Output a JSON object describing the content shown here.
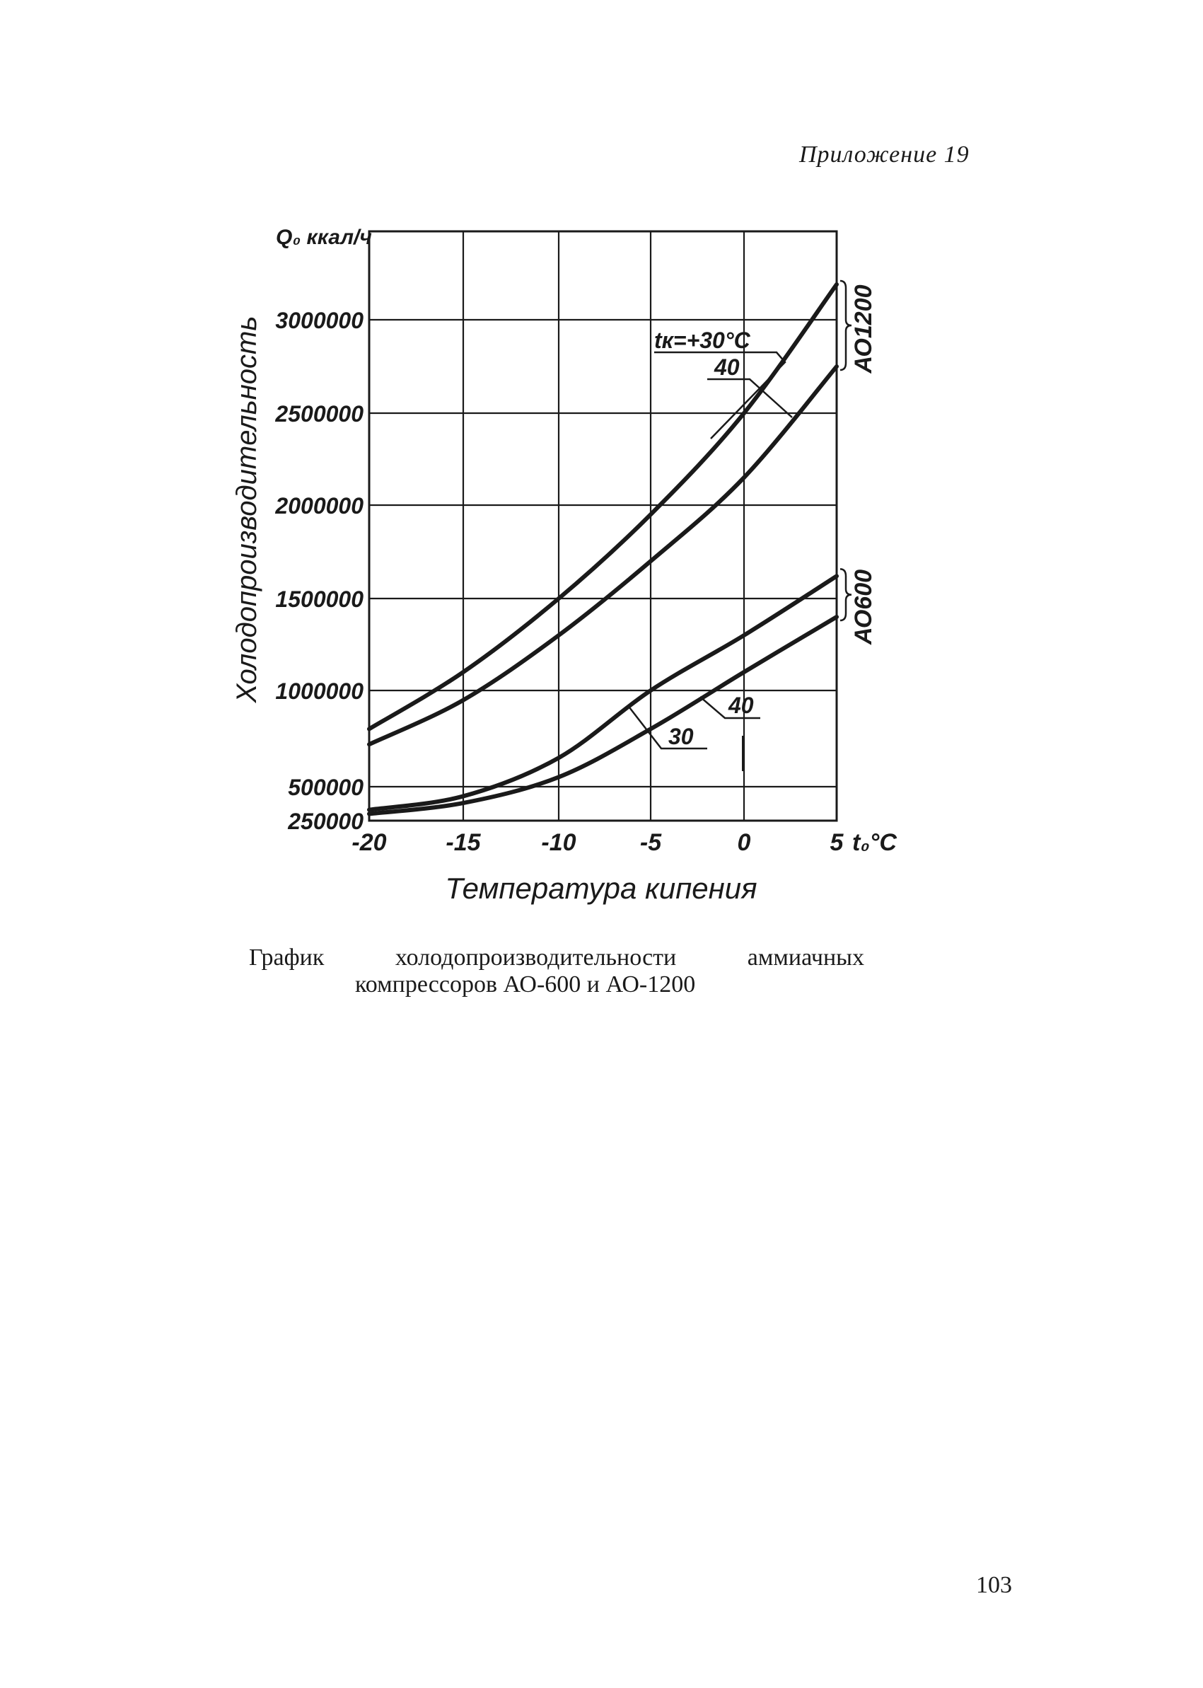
{
  "page": {
    "appendix": "Приложение 19",
    "caption_line1": [
      "График",
      "холодопроизводительности",
      "аммиачных"
    ],
    "caption_line2": "компрессоров АО-600 и АО-1200",
    "page_number": "103"
  },
  "chart_data": {
    "type": "line",
    "title": "",
    "xlabel": "Температура кипения",
    "x_unit": "t₀°C",
    "ylabel": "Холодопроизводительность",
    "y_unit": "Q₀ ккал/ч",
    "xlim": [
      -20,
      5
    ],
    "x_ticks": [
      -20,
      -15,
      -10,
      -5,
      0,
      5
    ],
    "x_tick_labels": [
      "-20",
      "-15",
      "-10",
      "-5",
      "0",
      "5"
    ],
    "ylim": [
      250000,
      3500000
    ],
    "y_ticks": [
      250000,
      500000,
      1000000,
      1500000,
      2000000,
      2500000,
      3000000
    ],
    "y_tick_labels": [
      "250000",
      "500000",
      "1000000",
      "1500000",
      "2000000",
      "2500000",
      "3000000"
    ],
    "grid": true,
    "groups": [
      {
        "label": "АО1200",
        "series": [
          "AO1200_30",
          "AO1200_40"
        ]
      },
      {
        "label": "АО600",
        "series": [
          "AO600_30",
          "AO600_40"
        ]
      }
    ],
    "series": [
      {
        "id": "AO1200_30",
        "label": "tк=+30°C",
        "x": [
          -20,
          -15,
          -10,
          -5,
          0,
          5
        ],
        "values": [
          800000,
          1100000,
          1500000,
          1950000,
          2500000,
          3200000
        ]
      },
      {
        "id": "AO1200_40",
        "label": "40",
        "x": [
          -20,
          -15,
          -10,
          -5,
          0,
          5
        ],
        "values": [
          720000,
          950000,
          1300000,
          1700000,
          2150000,
          2750000
        ]
      },
      {
        "id": "AO600_30",
        "label": "30",
        "x": [
          -20,
          -15,
          -10,
          -5,
          0,
          5
        ],
        "values": [
          330000,
          430000,
          650000,
          1000000,
          1300000,
          1620000
        ]
      },
      {
        "id": "AO600_40",
        "label": "40",
        "x": [
          -20,
          -15,
          -10,
          -5,
          0,
          5
        ],
        "values": [
          300000,
          380000,
          550000,
          800000,
          1100000,
          1400000
        ]
      }
    ]
  }
}
